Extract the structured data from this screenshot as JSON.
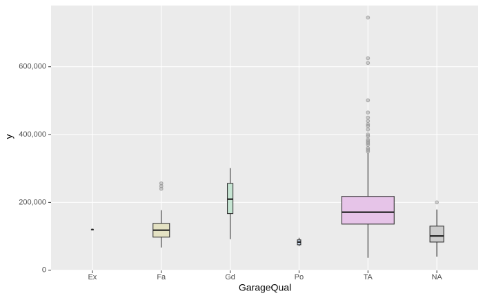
{
  "chart_data": {
    "type": "boxplot",
    "x_label": "GarageQual",
    "y_label": "y",
    "categories": [
      "Ex",
      "Fa",
      "Gd",
      "Po",
      "TA",
      "NA"
    ],
    "colors": [
      "#f3c9c2",
      "#e4e2c3",
      "#c6e5d3",
      "#c9d9ee",
      "#e6c4e8",
      "#cccccc"
    ],
    "boxes": [
      {
        "low": 120000,
        "q1": 120000,
        "median": 120000,
        "q3": 120000,
        "high": 120000,
        "outliers": []
      },
      {
        "low": 67000,
        "q1": 97600,
        "median": 118000,
        "q3": 138000,
        "high": 177000,
        "outliers": [
          240000,
          248000,
          256000
        ]
      },
      {
        "low": 91500,
        "q1": 167000,
        "median": 209500,
        "q3": 256000,
        "high": 301000,
        "outliers": []
      },
      {
        "low": 71000,
        "q1": 75000,
        "median": 83000,
        "q3": 89500,
        "high": 95600,
        "outliers": []
      },
      {
        "low": 36600,
        "q1": 136000,
        "median": 171000,
        "q3": 217600,
        "high": 346000,
        "outliers": [
          745000,
          625000,
          611000,
          501000,
          465000,
          450000,
          440000,
          430000,
          425000,
          415000,
          400000,
          395000,
          385000,
          380000,
          375000,
          370000,
          360000,
          355000,
          350000
        ]
      },
      {
        "low": 40000,
        "q1": 83000,
        "median": 101000,
        "q3": 130000,
        "high": 179000,
        "outliers": [
          200000
        ]
      }
    ],
    "ylim": [
      -600,
      780500
    ],
    "yticks": [
      0,
      {
        "value": 200000,
        "label": "200,000"
      },
      {
        "value": 400000,
        "label": "400,000"
      },
      {
        "value": 600000,
        "label": "600,000"
      }
    ],
    "grid": true
  }
}
